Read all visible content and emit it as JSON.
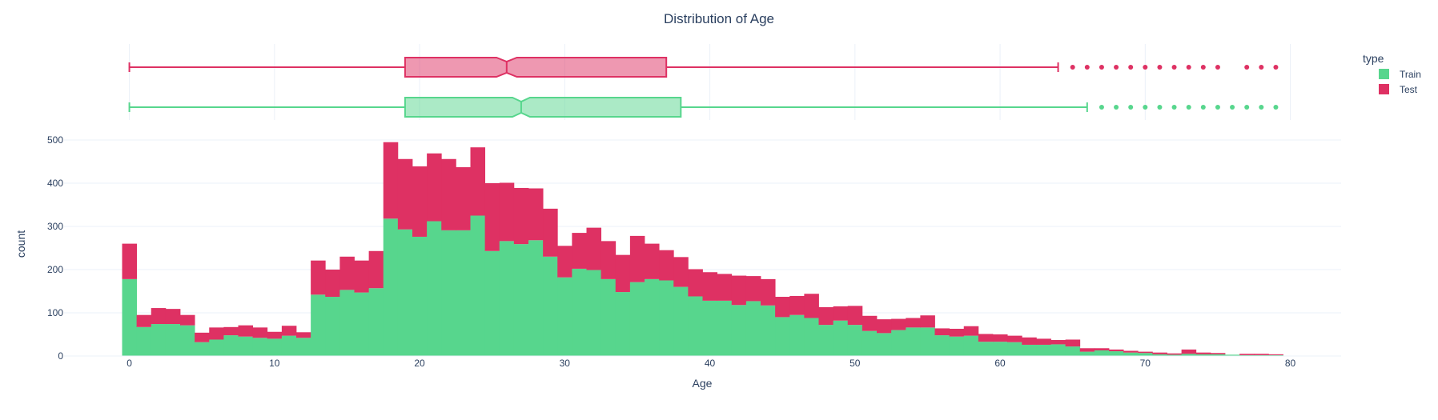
{
  "chart_data": {
    "type": "bar",
    "title": "Distribution of Age",
    "xlabel": "Age",
    "ylabel": "count",
    "xlim": [
      -4.5,
      83.5
    ],
    "ylim": [
      0,
      500
    ],
    "x_ticks": [
      0,
      10,
      20,
      30,
      40,
      50,
      60,
      70,
      80
    ],
    "y_ticks": [
      0,
      100,
      200,
      300,
      400,
      500
    ],
    "barmode": "stack",
    "bin_width": 1,
    "bin_start": -0.5,
    "legend": {
      "title": "type",
      "position": "top-right"
    },
    "colors": {
      "Train": "#57d68d",
      "Test": "#de3163",
      "grid": "#ebf0f8"
    },
    "series": [
      {
        "name": "Train",
        "values": [
          178,
          67,
          74,
          74,
          71,
          32,
          38,
          48,
          45,
          42,
          40,
          47,
          42,
          142,
          137,
          153,
          147,
          157,
          318,
          293,
          276,
          312,
          291,
          291,
          325,
          243,
          266,
          259,
          268,
          230,
          182,
          202,
          199,
          178,
          148,
          171,
          178,
          175,
          160,
          138,
          128,
          128,
          118,
          127,
          117,
          90,
          95,
          88,
          72,
          82,
          72,
          58,
          53,
          60,
          66,
          66,
          48,
          45,
          47,
          33,
          33,
          32,
          26,
          26,
          27,
          22,
          10,
          13,
          11,
          8,
          7,
          4,
          3,
          5,
          4,
          4,
          3,
          2,
          2,
          2
        ]
      },
      {
        "name": "Test",
        "values": [
          82,
          28,
          37,
          35,
          24,
          22,
          28,
          19,
          26,
          24,
          16,
          23,
          13,
          79,
          63,
          77,
          74,
          86,
          177,
          163,
          163,
          157,
          165,
          146,
          158,
          157,
          135,
          130,
          120,
          111,
          73,
          83,
          98,
          88,
          86,
          107,
          82,
          70,
          69,
          63,
          66,
          62,
          68,
          58,
          61,
          47,
          44,
          56,
          41,
          33,
          44,
          35,
          32,
          26,
          22,
          28,
          16,
          18,
          22,
          18,
          17,
          15,
          17,
          14,
          10,
          16,
          8,
          5,
          4,
          4,
          3,
          4,
          3,
          10,
          4,
          3,
          0,
          3,
          3,
          2
        ]
      }
    ],
    "box": [
      {
        "name": "Test",
        "whisker_low": 0,
        "q1": 19,
        "median": 26,
        "q3": 37,
        "whisker_high": 64,
        "notch": [
          25.3,
          26.7
        ],
        "outliers": [
          65,
          66,
          67,
          68,
          69,
          70,
          71,
          72,
          73,
          74,
          75,
          77,
          78,
          79
        ]
      },
      {
        "name": "Train",
        "whisker_low": 0,
        "q1": 19,
        "median": 27,
        "q3": 38,
        "whisker_high": 66,
        "notch": [
          26.4,
          27.6
        ],
        "outliers": [
          67,
          68,
          69,
          70,
          71,
          72,
          73,
          74,
          75,
          76,
          77,
          78,
          79
        ]
      }
    ]
  }
}
